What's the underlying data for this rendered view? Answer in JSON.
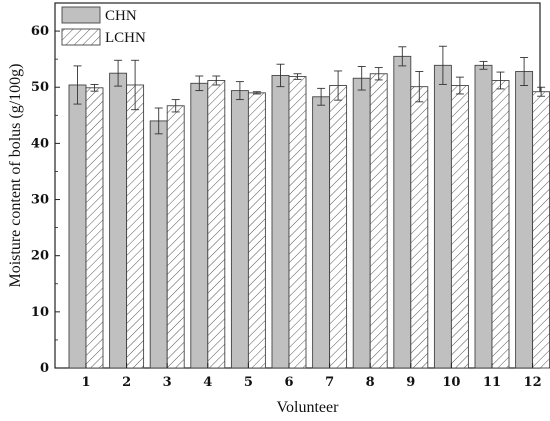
{
  "chart_data": {
    "type": "bar",
    "xlabel": "Volunteer",
    "ylabel": "Moisture content of bolus (g/100g)",
    "ylim": [
      0,
      65
    ],
    "yticks": [
      0,
      10,
      20,
      30,
      40,
      50,
      60
    ],
    "categories": [
      "1",
      "2",
      "3",
      "4",
      "5",
      "6",
      "7",
      "8",
      "9",
      "10",
      "11",
      "12"
    ],
    "legend_position": "top-left",
    "series": [
      {
        "name": "CHN",
        "pattern": "solid",
        "color": "#c0c0c0",
        "values": [
          50.4,
          52.5,
          44.0,
          50.7,
          49.4,
          52.1,
          48.3,
          51.6,
          55.5,
          53.9,
          53.9,
          52.8
        ],
        "errors": [
          3.4,
          2.3,
          2.3,
          1.3,
          1.6,
          2.0,
          1.5,
          2.1,
          1.7,
          3.4,
          0.7,
          2.5
        ]
      },
      {
        "name": "LCHN",
        "pattern": "hatched",
        "color": "#ffffff",
        "values": [
          49.9,
          50.4,
          46.7,
          51.2,
          49.0,
          51.9,
          50.3,
          52.4,
          50.1,
          50.3,
          51.2,
          49.2
        ],
        "errors": [
          0.6,
          4.4,
          1.1,
          0.8,
          0.2,
          0.5,
          2.6,
          1.1,
          2.7,
          1.5,
          1.5,
          0.8
        ]
      }
    ]
  }
}
